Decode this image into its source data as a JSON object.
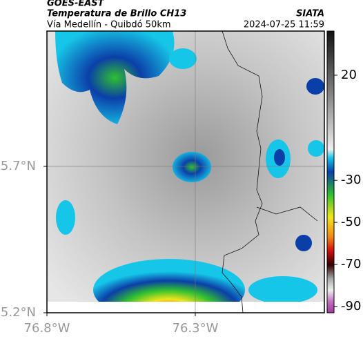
{
  "header": {
    "title": "GOES-EAST",
    "subtitle": "Temperatura de Brillo CH13",
    "route": "Vía Medellín - Quibdó 50km",
    "source": "SIATA",
    "timestamp": "2024-07-25 11:59"
  },
  "map": {
    "xlim": [
      -76.8,
      -75.865
    ],
    "ylim": [
      5.2,
      6.162
    ],
    "xticks": [
      {
        "value": -76.8,
        "label": "76.8°W"
      },
      {
        "value": -76.3,
        "label": "76.3°W"
      }
    ],
    "yticks": [
      {
        "value": 5.2,
        "label": "5.2°N"
      },
      {
        "value": 5.7,
        "label": "5.7°N"
      }
    ],
    "grid": true
  },
  "colorbar": {
    "lim": [
      -93,
      41
    ],
    "ticks": [
      20,
      -30,
      -50,
      -70,
      -90
    ]
  }
}
